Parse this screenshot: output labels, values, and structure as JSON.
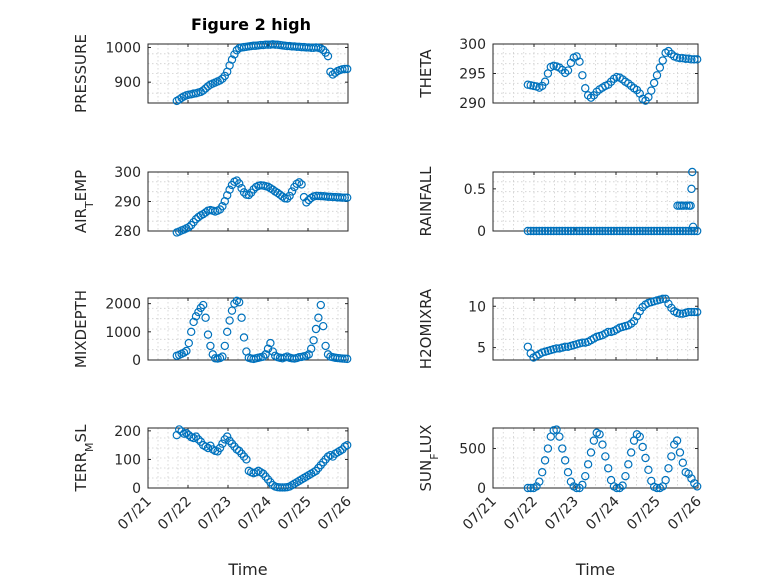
{
  "figure": {
    "title": "Figure 2 high"
  },
  "chart_data": [
    {
      "type": "scatter",
      "ylabel": "PRESSURE",
      "ylim": [
        840,
        1010
      ],
      "yticks": [
        900,
        1000
      ],
      "xlim": [
        0,
        5
      ],
      "xticks": [
        0,
        1,
        2,
        3,
        4,
        5
      ],
      "xticklabels": [],
      "grid": true,
      "x": [
        0.72,
        0.78,
        0.84,
        0.9,
        0.96,
        1.02,
        1.08,
        1.14,
        1.2,
        1.26,
        1.32,
        1.38,
        1.44,
        1.5,
        1.56,
        1.62,
        1.68,
        1.74,
        1.8,
        1.86,
        1.92,
        1.98,
        2.04,
        2.1,
        2.16,
        2.22,
        2.28,
        2.34,
        2.4,
        2.46,
        2.52,
        2.58,
        2.64,
        2.7,
        2.76,
        2.82,
        2.88,
        2.94,
        3.0,
        3.06,
        3.12,
        3.18,
        3.24,
        3.3,
        3.36,
        3.42,
        3.48,
        3.54,
        3.6,
        3.66,
        3.72,
        3.78,
        3.84,
        3.9,
        3.96,
        4.02,
        4.08,
        4.14,
        4.2,
        4.26,
        4.32,
        4.38,
        4.44,
        4.5,
        4.56,
        4.62,
        4.68,
        4.74,
        4.8,
        4.86,
        4.92,
        4.98
      ],
      "y": [
        846,
        850,
        855,
        859,
        862,
        864,
        865,
        867,
        868,
        870,
        872,
        876,
        882,
        888,
        893,
        896,
        899,
        902,
        905,
        910,
        918,
        930,
        948,
        965,
        980,
        992,
        998,
        1000,
        1001,
        1002,
        1003,
        1004,
        1005,
        1005,
        1006,
        1007,
        1007,
        1008,
        1008,
        1008,
        1009,
        1008,
        1008,
        1007,
        1006,
        1005,
        1004,
        1004,
        1003,
        1003,
        1002,
        1002,
        1001,
        1001,
        1000,
        1000,
        999,
        999,
        1000,
        999,
        997,
        993,
        985,
        975,
        930,
        922,
        927,
        932,
        935,
        937,
        938,
        938
      ]
    },
    {
      "type": "scatter",
      "ylabel": "THETA",
      "ylim": [
        290,
        300
      ],
      "yticks": [
        290,
        295,
        300
      ],
      "xlim": [
        0,
        5
      ],
      "xticks": [
        0,
        1,
        2,
        3,
        4,
        5
      ],
      "xticklabels": [],
      "grid": true,
      "x": [
        0.85,
        0.92,
        0.99,
        1.06,
        1.13,
        1.2,
        1.27,
        1.34,
        1.41,
        1.48,
        1.55,
        1.62,
        1.69,
        1.76,
        1.83,
        1.9,
        1.97,
        2.04,
        2.11,
        2.18,
        2.25,
        2.32,
        2.39,
        2.46,
        2.53,
        2.6,
        2.67,
        2.74,
        2.81,
        2.88,
        2.95,
        3.02,
        3.09,
        3.16,
        3.23,
        3.3,
        3.37,
        3.44,
        3.51,
        3.58,
        3.65,
        3.72,
        3.79,
        3.86,
        3.93,
        4.0,
        4.07,
        4.14,
        4.21,
        4.28,
        4.35,
        4.42,
        4.49,
        4.56,
        4.63,
        4.7,
        4.77,
        4.84,
        4.91,
        4.98
      ],
      "y": [
        293.1,
        293.0,
        292.9,
        292.8,
        292.6,
        292.9,
        293.6,
        295.0,
        296.1,
        296.3,
        296.2,
        296.0,
        295.6,
        295.1,
        295.5,
        296.8,
        297.7,
        297.9,
        297.0,
        294.7,
        292.5,
        291.3,
        290.9,
        291.3,
        291.9,
        292.3,
        292.6,
        292.9,
        293.1,
        293.6,
        294.1,
        294.4,
        294.3,
        294.0,
        293.6,
        293.3,
        292.9,
        292.5,
        292.2,
        291.6,
        290.7,
        290.4,
        291.0,
        292.1,
        293.4,
        294.7,
        296.0,
        297.2,
        298.5,
        298.8,
        298.3,
        297.9,
        297.7,
        297.6,
        297.6,
        297.5,
        297.5,
        297.4,
        297.4,
        297.4
      ]
    },
    {
      "type": "scatter",
      "ylabel": "AIR_TEMP",
      "ylim": [
        280,
        300
      ],
      "yticks": [
        280,
        290,
        300
      ],
      "xlim": [
        0,
        5
      ],
      "xticks": [
        0,
        1,
        2,
        3,
        4,
        5
      ],
      "xticklabels": [],
      "grid": true,
      "x": [
        0.72,
        0.78,
        0.84,
        0.9,
        0.96,
        1.02,
        1.08,
        1.14,
        1.2,
        1.26,
        1.32,
        1.38,
        1.44,
        1.5,
        1.56,
        1.62,
        1.68,
        1.74,
        1.8,
        1.86,
        1.92,
        1.98,
        2.04,
        2.1,
        2.16,
        2.22,
        2.28,
        2.34,
        2.4,
        2.46,
        2.52,
        2.58,
        2.64,
        2.7,
        2.76,
        2.82,
        2.88,
        2.94,
        3.0,
        3.06,
        3.12,
        3.18,
        3.24,
        3.3,
        3.36,
        3.42,
        3.48,
        3.54,
        3.6,
        3.66,
        3.72,
        3.78,
        3.84,
        3.9,
        3.96,
        4.02,
        4.08,
        4.14,
        4.2,
        4.26,
        4.32,
        4.38,
        4.44,
        4.5,
        4.56,
        4.62,
        4.68,
        4.74,
        4.8,
        4.86,
        4.92,
        4.98
      ],
      "y": [
        279.5,
        279.8,
        280.2,
        280.5,
        280.9,
        281.3,
        282.0,
        283.0,
        284.0,
        284.7,
        285.3,
        285.7,
        286.3,
        286.9,
        287.1,
        286.9,
        286.6,
        286.9,
        287.3,
        288.4,
        290.1,
        292.1,
        294.0,
        295.6,
        296.7,
        297.1,
        296.1,
        294.5,
        293.1,
        292.3,
        292.2,
        293.0,
        294.1,
        294.9,
        295.3,
        295.5,
        295.4,
        295.2,
        295.0,
        294.5,
        294.0,
        293.4,
        292.9,
        292.3,
        291.7,
        291.1,
        291.0,
        291.9,
        293.4,
        294.9,
        296.0,
        296.5,
        295.8,
        291.5,
        289.7,
        290.5,
        291.2,
        291.7,
        291.9,
        291.9,
        291.8,
        291.8,
        291.7,
        291.6,
        291.6,
        291.5,
        291.5,
        291.4,
        291.4,
        291.3,
        291.3,
        291.3
      ]
    },
    {
      "type": "scatter",
      "ylabel": "RAINFALL",
      "ylim": [
        0,
        0.7
      ],
      "yticks": [
        0,
        0.5
      ],
      "xlim": [
        0,
        5
      ],
      "xticks": [
        0,
        1,
        2,
        3,
        4,
        5
      ],
      "xticklabels": [],
      "grid": true,
      "x": [
        0.85,
        0.92,
        0.99,
        1.06,
        1.13,
        1.2,
        1.27,
        1.34,
        1.41,
        1.48,
        1.55,
        1.62,
        1.69,
        1.76,
        1.83,
        1.9,
        1.97,
        2.04,
        2.11,
        2.18,
        2.25,
        2.32,
        2.39,
        2.46,
        2.53,
        2.6,
        2.67,
        2.74,
        2.81,
        2.88,
        2.95,
        3.02,
        3.09,
        3.16,
        3.23,
        3.3,
        3.37,
        3.44,
        3.51,
        3.58,
        3.65,
        3.72,
        3.79,
        3.86,
        3.93,
        4.0,
        4.07,
        4.14,
        4.21,
        4.28,
        4.35,
        4.42,
        4.49,
        4.56,
        4.63,
        4.7,
        4.77,
        4.84,
        4.91,
        4.98,
        4.5,
        4.55,
        4.6,
        4.65,
        4.72,
        4.78,
        4.82,
        4.84,
        4.86,
        4.88
      ],
      "y": [
        0,
        0,
        0,
        0,
        0,
        0,
        0,
        0,
        0,
        0,
        0,
        0,
        0,
        0,
        0,
        0,
        0,
        0,
        0,
        0,
        0,
        0,
        0,
        0,
        0,
        0,
        0,
        0,
        0,
        0,
        0,
        0,
        0,
        0,
        0,
        0,
        0,
        0,
        0,
        0,
        0,
        0,
        0,
        0,
        0,
        0,
        0,
        0,
        0,
        0,
        0,
        0,
        0,
        0,
        0,
        0,
        0,
        0,
        0,
        0,
        0.3,
        0.3,
        0.3,
        0.3,
        0.3,
        0.3,
        0.3,
        0.5,
        0.7,
        0.05
      ]
    },
    {
      "type": "scatter",
      "ylabel": "MIXDEPTH",
      "ylim": [
        0,
        2200
      ],
      "yticks": [
        0,
        1000,
        2000
      ],
      "xlim": [
        0,
        5
      ],
      "xticks": [
        0,
        1,
        2,
        3,
        4,
        5
      ],
      "xticklabels": [],
      "grid": true,
      "x": [
        0.72,
        0.78,
        0.84,
        0.9,
        0.96,
        1.02,
        1.08,
        1.14,
        1.2,
        1.26,
        1.32,
        1.38,
        1.44,
        1.5,
        1.56,
        1.62,
        1.68,
        1.74,
        1.8,
        1.86,
        1.92,
        1.98,
        2.04,
        2.1,
        2.16,
        2.22,
        2.28,
        2.34,
        2.4,
        2.46,
        2.52,
        2.58,
        2.64,
        2.7,
        2.76,
        2.82,
        2.88,
        2.94,
        3.0,
        3.06,
        3.12,
        3.18,
        3.24,
        3.3,
        3.36,
        3.42,
        3.48,
        3.54,
        3.6,
        3.66,
        3.72,
        3.78,
        3.84,
        3.9,
        3.96,
        4.02,
        4.08,
        4.14,
        4.2,
        4.26,
        4.32,
        4.38,
        4.44,
        4.5,
        4.56,
        4.62,
        4.68,
        4.74,
        4.8,
        4.86,
        4.92,
        4.98
      ],
      "y": [
        150,
        180,
        220,
        260,
        320,
        600,
        1000,
        1350,
        1550,
        1700,
        1850,
        1950,
        1500,
        900,
        500,
        200,
        60,
        50,
        70,
        120,
        500,
        1000,
        1400,
        1750,
        2000,
        2100,
        2050,
        1500,
        800,
        300,
        80,
        50,
        40,
        60,
        80,
        100,
        120,
        200,
        400,
        600,
        300,
        150,
        100,
        80,
        60,
        90,
        120,
        80,
        60,
        50,
        70,
        100,
        110,
        130,
        150,
        200,
        400,
        700,
        1100,
        1500,
        1950,
        1200,
        500,
        200,
        120,
        100,
        80,
        70,
        60,
        50,
        45,
        40
      ]
    },
    {
      "type": "scatter",
      "ylabel": "H2OMIXRA",
      "ylim": [
        3.5,
        11
      ],
      "yticks": [
        5,
        10
      ],
      "xlim": [
        0,
        5
      ],
      "xticks": [
        0,
        1,
        2,
        3,
        4,
        5
      ],
      "xticklabels": [],
      "grid": true,
      "x": [
        0.85,
        0.92,
        0.99,
        1.06,
        1.13,
        1.2,
        1.27,
        1.34,
        1.41,
        1.48,
        1.55,
        1.62,
        1.69,
        1.76,
        1.83,
        1.9,
        1.97,
        2.04,
        2.11,
        2.18,
        2.25,
        2.32,
        2.39,
        2.46,
        2.53,
        2.6,
        2.67,
        2.74,
        2.81,
        2.88,
        2.95,
        3.02,
        3.09,
        3.16,
        3.23,
        3.3,
        3.37,
        3.44,
        3.51,
        3.58,
        3.65,
        3.72,
        3.79,
        3.86,
        3.93,
        4.0,
        4.07,
        4.14,
        4.21,
        4.28,
        4.35,
        4.42,
        4.49,
        4.56,
        4.63,
        4.7,
        4.77,
        4.84,
        4.91,
        4.98
      ],
      "y": [
        5.1,
        4.3,
        3.8,
        4.0,
        4.2,
        4.4,
        4.5,
        4.6,
        4.7,
        4.8,
        4.9,
        4.9,
        5.0,
        5.1,
        5.1,
        5.2,
        5.3,
        5.4,
        5.5,
        5.6,
        5.6,
        5.7,
        5.9,
        6.1,
        6.3,
        6.4,
        6.5,
        6.7,
        6.9,
        6.9,
        7.0,
        7.2,
        7.4,
        7.5,
        7.6,
        7.7,
        7.9,
        8.2,
        8.8,
        9.4,
        9.9,
        10.2,
        10.4,
        10.5,
        10.6,
        10.7,
        10.8,
        10.9,
        10.9,
        10.3,
        9.8,
        9.4,
        9.2,
        9.1,
        9.1,
        9.2,
        9.3,
        9.3,
        9.3,
        9.3
      ]
    },
    {
      "type": "scatter",
      "ylabel": "TERR_MSL",
      "ylim": [
        0,
        210
      ],
      "yticks": [
        0,
        100,
        200
      ],
      "xlim": [
        0,
        5
      ],
      "xticks": [
        0,
        1,
        2,
        3,
        4,
        5
      ],
      "xticklabels": [
        "07/21",
        "07/22",
        "07/23",
        "07/24",
        "07/25",
        "07/26"
      ],
      "xlabel": "Time",
      "grid": true,
      "x": [
        0.72,
        0.78,
        0.84,
        0.9,
        0.96,
        1.02,
        1.08,
        1.14,
        1.2,
        1.26,
        1.32,
        1.38,
        1.44,
        1.5,
        1.56,
        1.62,
        1.68,
        1.74,
        1.8,
        1.86,
        1.92,
        1.98,
        2.04,
        2.1,
        2.16,
        2.22,
        2.28,
        2.34,
        2.4,
        2.46,
        2.52,
        2.58,
        2.64,
        2.7,
        2.76,
        2.82,
        2.88,
        2.94,
        3.0,
        3.06,
        3.12,
        3.18,
        3.24,
        3.3,
        3.36,
        3.42,
        3.48,
        3.54,
        3.6,
        3.66,
        3.72,
        3.78,
        3.84,
        3.9,
        3.96,
        4.02,
        4.08,
        4.14,
        4.2,
        4.26,
        4.32,
        4.38,
        4.44,
        4.5,
        4.56,
        4.62,
        4.68,
        4.74,
        4.8,
        4.86,
        4.92,
        4.98
      ],
      "y": [
        185,
        205,
        198,
        190,
        192,
        185,
        178,
        175,
        180,
        170,
        162,
        150,
        145,
        140,
        148,
        135,
        130,
        128,
        140,
        155,
        170,
        180,
        165,
        155,
        145,
        135,
        130,
        120,
        110,
        100,
        60,
        55,
        52,
        55,
        60,
        55,
        50,
        40,
        30,
        20,
        10,
        5,
        3,
        2,
        2,
        2,
        3,
        5,
        10,
        15,
        20,
        25,
        30,
        35,
        40,
        45,
        50,
        55,
        60,
        70,
        80,
        90,
        100,
        110,
        115,
        110,
        120,
        125,
        130,
        135,
        145,
        150
      ]
    },
    {
      "type": "scatter",
      "ylabel": "SUN_FLUX",
      "ylim": [
        0,
        760
      ],
      "yticks": [
        0,
        500
      ],
      "xlim": [
        0,
        5
      ],
      "xticks": [
        0,
        1,
        2,
        3,
        4,
        5
      ],
      "xticklabels": [
        "07/21",
        "07/22",
        "07/23",
        "07/24",
        "07/25",
        "07/26"
      ],
      "xlabel": "Time",
      "grid": true,
      "x": [
        0.85,
        0.92,
        0.99,
        1.06,
        1.13,
        1.2,
        1.27,
        1.34,
        1.41,
        1.48,
        1.55,
        1.62,
        1.69,
        1.76,
        1.83,
        1.9,
        1.97,
        2.04,
        2.11,
        2.18,
        2.25,
        2.32,
        2.39,
        2.46,
        2.53,
        2.6,
        2.67,
        2.74,
        2.81,
        2.88,
        2.95,
        3.02,
        3.09,
        3.16,
        3.23,
        3.3,
        3.37,
        3.44,
        3.51,
        3.58,
        3.65,
        3.72,
        3.79,
        3.86,
        3.93,
        4.0,
        4.07,
        4.14,
        4.21,
        4.28,
        4.35,
        4.42,
        4.49,
        4.56,
        4.63,
        4.7,
        4.77,
        4.84,
        4.91,
        4.98
      ],
      "y": [
        0,
        0,
        0,
        20,
        80,
        200,
        350,
        500,
        650,
        730,
        740,
        650,
        500,
        350,
        200,
        80,
        20,
        0,
        0,
        40,
        150,
        300,
        450,
        600,
        700,
        680,
        550,
        400,
        250,
        100,
        20,
        0,
        0,
        30,
        150,
        300,
        450,
        600,
        680,
        650,
        520,
        380,
        230,
        90,
        15,
        0,
        0,
        20,
        100,
        250,
        400,
        550,
        600,
        450,
        320,
        200,
        180,
        120,
        60,
        20
      ]
    }
  ]
}
